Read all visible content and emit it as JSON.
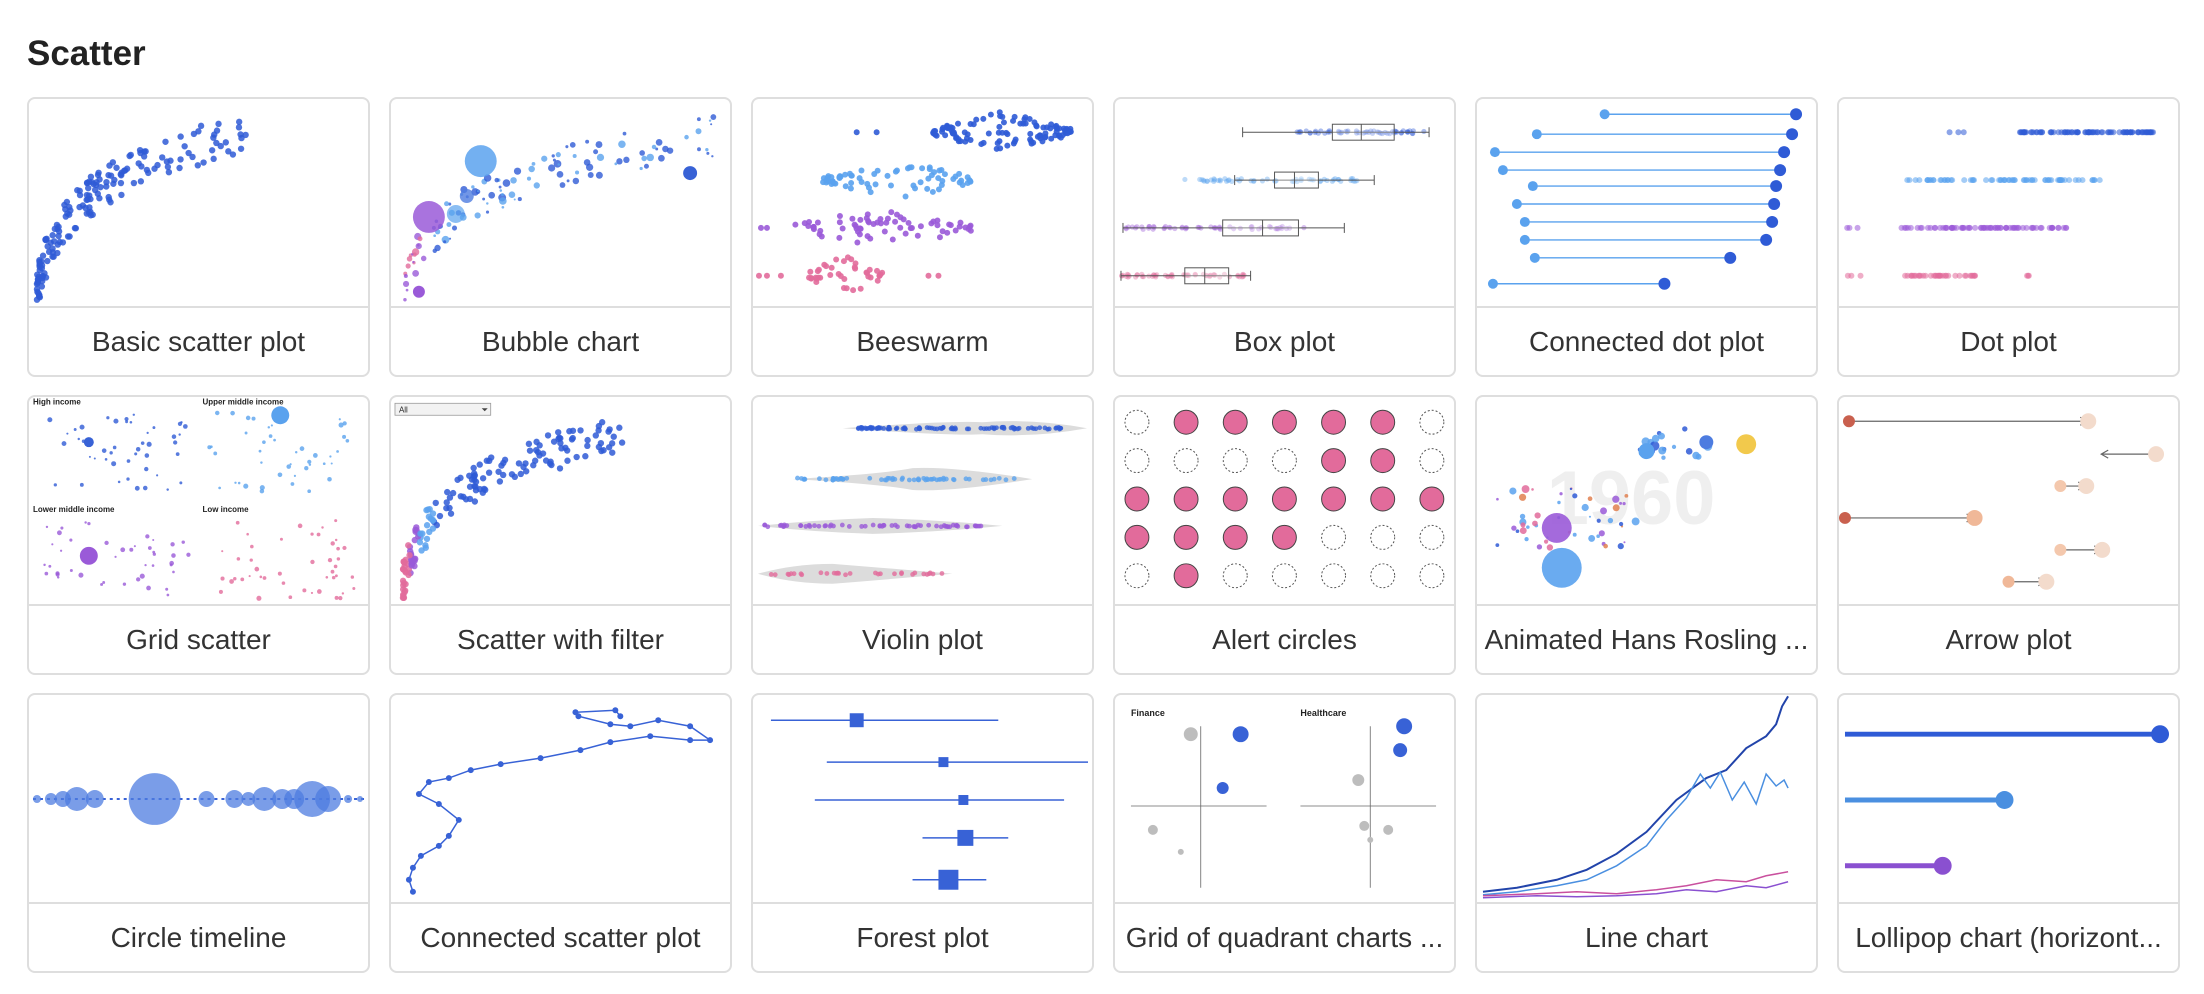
{
  "section": {
    "title": "Scatter"
  },
  "cards": [
    {
      "label": "Basic scatter plot",
      "icon": "basic-scatter-thumbnail-icon"
    },
    {
      "label": "Bubble chart",
      "icon": "bubble-chart-thumbnail-icon"
    },
    {
      "label": "Beeswarm",
      "icon": "beeswarm-thumbnail-icon"
    },
    {
      "label": "Box plot",
      "icon": "box-plot-thumbnail-icon"
    },
    {
      "label": "Connected dot plot",
      "icon": "connected-dot-thumbnail-icon"
    },
    {
      "label": "Dot plot",
      "icon": "dot-plot-thumbnail-icon"
    },
    {
      "label": "Grid scatter",
      "icon": "grid-scatter-thumbnail-icon"
    },
    {
      "label": "Scatter with filter",
      "icon": "scatter-filter-thumbnail-icon"
    },
    {
      "label": "Violin plot",
      "icon": "violin-plot-thumbnail-icon"
    },
    {
      "label": "Alert circles",
      "icon": "alert-circles-thumbnail-icon"
    },
    {
      "label": "Animated Hans Rosling ...",
      "icon": "animated-bubble-thumbnail-icon"
    },
    {
      "label": "Arrow plot",
      "icon": "arrow-plot-thumbnail-icon"
    },
    {
      "label": "Circle timeline",
      "icon": "circle-timeline-thumbnail-icon"
    },
    {
      "label": "Connected scatter plot",
      "icon": "connected-scatter-thumbnail-icon"
    },
    {
      "label": "Forest plot",
      "icon": "forest-plot-thumbnail-icon"
    },
    {
      "label": "Grid of quadrant charts ...",
      "icon": "quadrant-grid-thumbnail-icon"
    },
    {
      "label": "Line chart",
      "icon": "line-chart-thumbnail-icon"
    },
    {
      "label": "Lollipop chart (horizont...",
      "icon": "lollipop-thumbnail-icon"
    }
  ],
  "thumb_text": {
    "grid_high": "High income",
    "grid_upper": "Upper middle income",
    "grid_lower": "Lower middle income",
    "grid_low": "Low income",
    "filter_value": "All",
    "year_watermark": "1960",
    "quad_finance": "Finance",
    "quad_healthcare": "Healthcare"
  },
  "colors": {
    "blue_dark": "#2f5bd6",
    "blue_light": "#5aa2ee",
    "purple": "#9a5ad8",
    "pink": "#e26b9b",
    "grey": "#bcbcbc",
    "border": "#dedede"
  }
}
